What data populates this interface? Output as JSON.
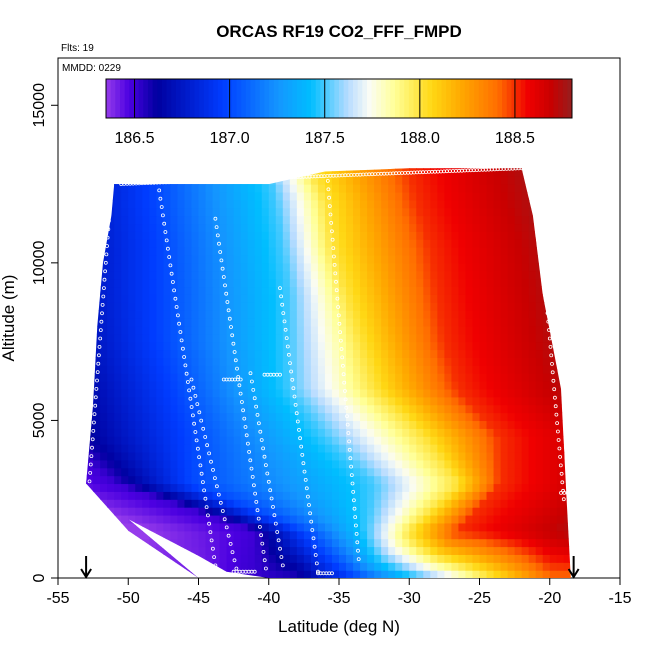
{
  "chart_data": {
    "type": "heatmap",
    "title": "ORCAS RF19 CO2_FFF_FMPD",
    "annotations": {
      "flights": "Flts: 19",
      "date": "MMDD: 0229"
    },
    "xlabel": "Latitude (deg N)",
    "ylabel": "Altitude (m)",
    "xlim": [
      -55,
      -15
    ],
    "ylim": [
      0,
      16500
    ],
    "x_ticks": [
      -55,
      -50,
      -45,
      -40,
      -35,
      -30,
      -25,
      -20,
      -15
    ],
    "y_ticks": [
      0,
      5000,
      10000,
      15000
    ],
    "colorbar": {
      "range": [
        186.35,
        188.8
      ],
      "ticks": [
        186.5,
        187.0,
        187.5,
        188.0,
        188.5
      ],
      "tick_labels": [
        "186.5",
        "187.0",
        "187.5",
        "188.0",
        "188.5"
      ]
    },
    "field": {
      "top_altitude": [
        [
          -51,
          12500
        ],
        [
          -40,
          12500
        ],
        [
          -36,
          12900
        ],
        [
          -30,
          13000
        ],
        [
          -22,
          13000
        ]
      ],
      "bottom_altitude": [
        [
          -53,
          3000
        ],
        [
          -51,
          2100
        ],
        [
          -45,
          700
        ],
        [
          -43,
          200
        ],
        [
          -40,
          0
        ],
        [
          -18.5,
          0
        ]
      ],
      "left_edge": [
        [
          0,
          -45
        ],
        [
          1500,
          -50
        ],
        [
          3000,
          -53
        ],
        [
          5500,
          -52.5
        ],
        [
          8000,
          -52.2
        ],
        [
          10000,
          -51.8
        ],
        [
          11500,
          -51.2
        ],
        [
          12500,
          -51
        ]
      ],
      "right_edge": [
        [
          0,
          -18.5
        ],
        [
          2500,
          -18.8
        ],
        [
          6000,
          -19.2
        ],
        [
          9000,
          -20.5
        ],
        [
          11500,
          -21.2
        ],
        [
          13000,
          -22
        ]
      ],
      "isoline_latitudes": {
        "altitudes": [
          0,
          1500,
          3000,
          4500,
          6000,
          7500,
          9000,
          10500,
          12000,
          13000
        ],
        "v186_5": [
          -41,
          -41,
          -51,
          -55,
          -56,
          -57,
          -58,
          -58,
          -58,
          -58
        ],
        "v187_0": [
          -37.5,
          -37.5,
          -45.5,
          -45.5,
          -46.5,
          -47.5,
          -47.5,
          -47.5,
          -48,
          -48
        ],
        "v187_5": [
          -35,
          -33,
          -32.5,
          -36,
          -38.5,
          -38.5,
          -38.5,
          -39,
          -39.5,
          -40
        ],
        "v188_0": [
          -33,
          -30,
          -26.5,
          -29,
          -32.5,
          -33.5,
          -34.5,
          -35.5,
          -36,
          -37
        ],
        "v188_5": [
          -29,
          -26.5,
          -23.5,
          -23.5,
          -26.5,
          -27.5,
          -28,
          -28.5,
          -29.5,
          -30
        ]
      },
      "surface_layer": {
        "altitude_range": [
          0,
          1500
        ],
        "values_by_latitude": [
          [
            -45,
            186.4
          ],
          [
            -42,
            186.5
          ],
          [
            -38,
            186.55
          ],
          [
            -35,
            186.85
          ],
          [
            -30,
            187.4
          ],
          [
            -25,
            187.9
          ],
          [
            -20,
            188.4
          ]
        ]
      }
    },
    "flight_profiles": [
      {
        "lat_bottom": -52.8,
        "lat_top": -51.2,
        "alt_bottom": 2800,
        "alt_top": 12400
      },
      {
        "lat_bottom": -43.8,
        "lat_top": -47.8,
        "alt_bottom": 400,
        "alt_top": 12300
      },
      {
        "lat_bottom": -42.3,
        "lat_top": -45.5,
        "alt_bottom": 300,
        "alt_top": 6300
      },
      {
        "lat_bottom": -40.2,
        "lat_top": -43.8,
        "alt_bottom": 300,
        "alt_top": 11400
      },
      {
        "lat_bottom": -39.0,
        "lat_top": -41.3,
        "alt_bottom": 400,
        "alt_top": 6500
      },
      {
        "lat_bottom": -36.5,
        "lat_top": -39.2,
        "alt_bottom": 200,
        "alt_top": 9200
      },
      {
        "lat_bottom": -33.6,
        "lat_top": -35.8,
        "alt_bottom": 600,
        "alt_top": 12600
      },
      {
        "lat_bottom": -19.0,
        "lat_top": -21.0,
        "alt_bottom": 2500,
        "alt_top": 12700
      }
    ],
    "level_legs": [
      {
        "lat_start": -50.5,
        "lat_end": -22.0,
        "alt_start": 12500,
        "alt_end": 13000
      },
      {
        "lat_start": -43.2,
        "lat_end": -42.0,
        "alt_start": 6300,
        "alt_end": 6300
      },
      {
        "lat_start": -40.3,
        "lat_end": -39.2,
        "alt_start": 6450,
        "alt_end": 6450
      },
      {
        "lat_start": -42.5,
        "lat_end": -41.0,
        "alt_start": 200,
        "alt_end": 200
      },
      {
        "lat_start": -36.5,
        "lat_end": -35.5,
        "alt_start": 150,
        "alt_end": 150
      },
      {
        "lat_start": -19.2,
        "lat_end": -18.5,
        "alt_start": 2700,
        "alt_end": 2700
      }
    ],
    "airport_markers_lat": [
      -53,
      -18.3
    ]
  }
}
